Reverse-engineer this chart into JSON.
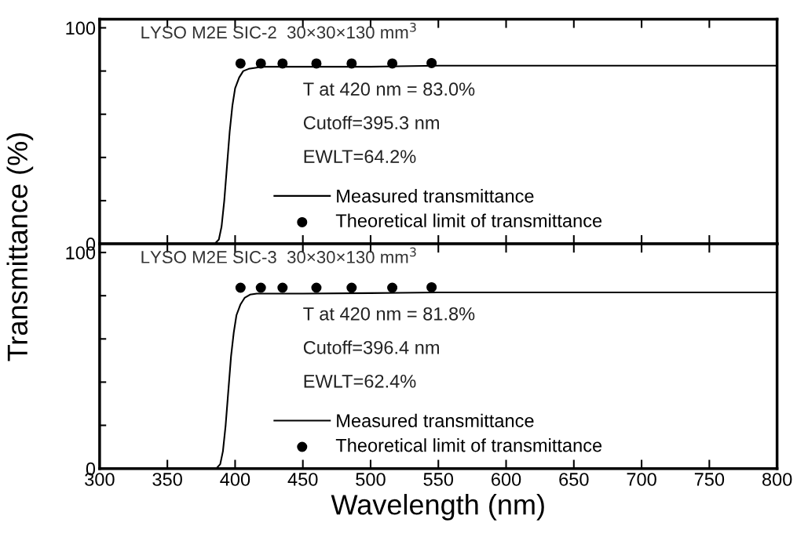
{
  "chart_data": [
    {
      "type": "line",
      "ylabel": "Transmittance (%)",
      "xlim": [
        300,
        800
      ],
      "xticks": [
        300,
        350,
        400,
        450,
        500,
        550,
        600,
        650,
        700,
        750,
        800
      ],
      "ylim": [
        0,
        104
      ],
      "yticks": [
        0,
        {
          "value": 20,
          "label": null
        },
        {
          "value": 40,
          "label": null
        },
        {
          "value": 60,
          "label": null
        },
        {
          "value": 80,
          "label": null
        },
        100
      ],
      "tick_labels": "y",
      "legend": "bottom",
      "grid": false,
      "annotations": [
        "LYSO M2E SIC-2  30×30×130 mm$^{3}$",
        "T at 420 nm = 83.0%",
        "Cutoff=395.3 nm",
        "EWLT=64.2%"
      ],
      "series": [
        {
          "name": "Measured transmittance",
          "color": "#000000",
          "line_style": "solid",
          "x": [
            300,
            385,
            388,
            390,
            392,
            394,
            396,
            398,
            400,
            403,
            406,
            410,
            415,
            420,
            450,
            500,
            550,
            600,
            700,
            800
          ],
          "values": [
            0,
            0,
            2,
            8,
            20,
            36,
            52,
            64,
            72,
            77,
            80,
            81,
            81.5,
            82,
            82,
            82,
            82.5,
            82.5,
            82.5,
            82.5
          ]
        },
        {
          "name": "Theoretical limit of transmittance",
          "type": "scatter",
          "color": "#000000",
          "marker": "circle",
          "x": [
            404,
            419,
            435,
            460,
            486,
            516,
            545
          ],
          "values": [
            83.5,
            83.5,
            83.5,
            83.5,
            83.5,
            83.5,
            83.7
          ]
        }
      ]
    },
    {
      "type": "line",
      "xlabel": "Wavelength (nm)",
      "xlim": [
        300,
        800
      ],
      "xticks": [
        300,
        350,
        400,
        450,
        500,
        550,
        600,
        650,
        700,
        750,
        800
      ],
      "ylim": [
        0,
        104
      ],
      "yticks": [
        0,
        {
          "value": 20,
          "label": null
        },
        {
          "value": 40,
          "label": null
        },
        {
          "value": 60,
          "label": null
        },
        {
          "value": 80,
          "label": null
        },
        100
      ],
      "legend": "bottom",
      "grid": false,
      "annotations": [
        "LYSO M2E SIC-3  30×30×130 mm$^{3}$",
        "T at 420 nm = 81.8%",
        "Cutoff=396.4 nm",
        "EWLT=62.4%"
      ],
      "series": [
        {
          "name": "Measured transmittance",
          "color": "#000000",
          "line_style": "solid",
          "x": [
            300,
            386,
            389,
            391,
            393,
            395,
            397,
            399,
            401,
            404,
            407,
            411,
            416,
            420,
            450,
            500,
            550,
            600,
            700,
            800
          ],
          "values": [
            0,
            0,
            2,
            8,
            20,
            36,
            52,
            63,
            71,
            76,
            79,
            80.5,
            81,
            81,
            81,
            81.2,
            81.5,
            81.5,
            81.5,
            81.5
          ]
        },
        {
          "name": "Theoretical limit of transmittance",
          "type": "scatter",
          "color": "#000000",
          "marker": "circle",
          "x": [
            404,
            419,
            435,
            460,
            486,
            516,
            545
          ],
          "values": [
            83.7,
            83.7,
            83.7,
            83.7,
            83.7,
            83.7,
            83.9
          ]
        }
      ]
    }
  ]
}
